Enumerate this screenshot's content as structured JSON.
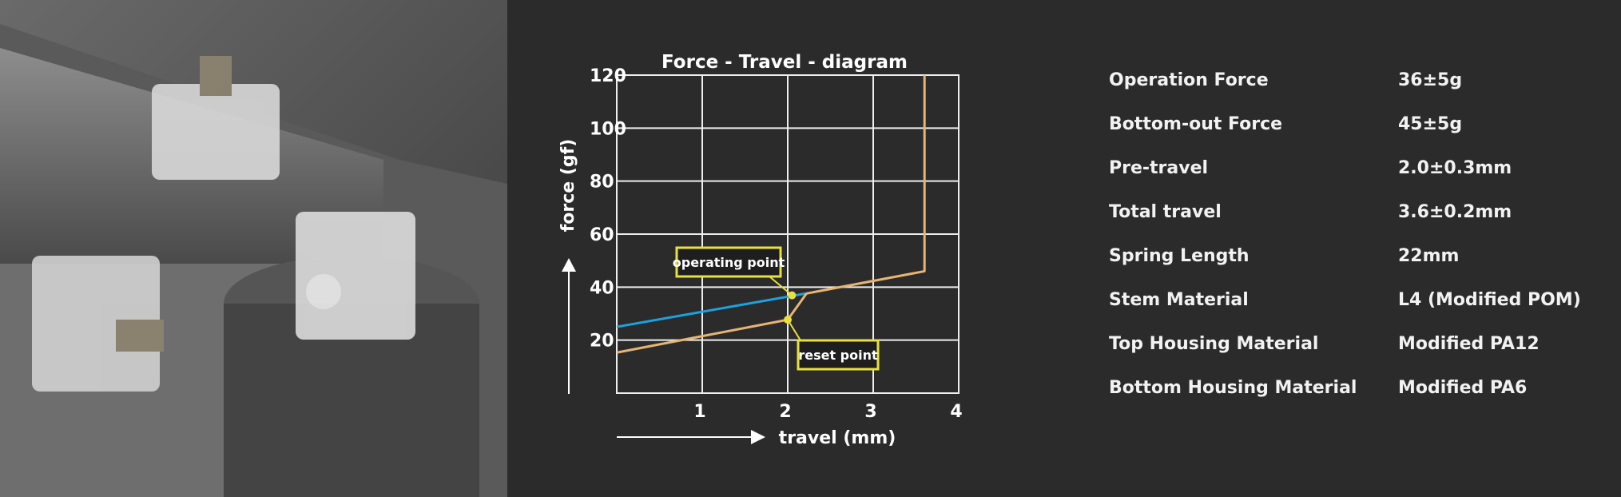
{
  "photo": {
    "alt_subject": "three translucent mechanical keyboard switches on grey stone steps"
  },
  "chart_data": {
    "type": "line",
    "title": "Force - Travel - diagram",
    "xlabel": "travel (mm)",
    "ylabel": "force (gf)",
    "xlim": [
      0,
      4
    ],
    "ylim": [
      0,
      120
    ],
    "x_ticks": [
      "1",
      "2",
      "3",
      "4"
    ],
    "y_ticks": [
      "20",
      "40",
      "60",
      "80",
      "100",
      "120"
    ],
    "grid": true,
    "series": [
      {
        "color": "#1aa3e0",
        "x": [
          0,
          2.21
        ],
        "y": [
          25,
          37.6
        ]
      },
      {
        "color": "#e6b574",
        "x": [
          0,
          2.0,
          2.22,
          3.6,
          3.6
        ],
        "y": [
          15.3,
          27.7,
          37.6,
          46,
          120
        ]
      }
    ],
    "annotations": [
      {
        "label": "operating point",
        "x": 2.05,
        "y": 36.9
      },
      {
        "label": "reset point",
        "x": 2.0,
        "y": 27.7
      }
    ],
    "annotation_color": "#e8e03c"
  },
  "specs": [
    {
      "label": "Operation Force",
      "value": "36±5g"
    },
    {
      "label": "Bottom-out Force",
      "value": "45±5g"
    },
    {
      "label": "Pre-travel",
      "value": "2.0±0.3mm"
    },
    {
      "label": "Total travel",
      "value": "3.6±0.2mm"
    },
    {
      "label": "Spring Length",
      "value": "22mm"
    },
    {
      "label": "Stem Material",
      "value": "L4 (Modified POM)"
    },
    {
      "label": "Top Housing Material",
      "value": "Modified PA12"
    },
    {
      "label": "Bottom Housing Material",
      "value": "Modified PA6"
    }
  ]
}
